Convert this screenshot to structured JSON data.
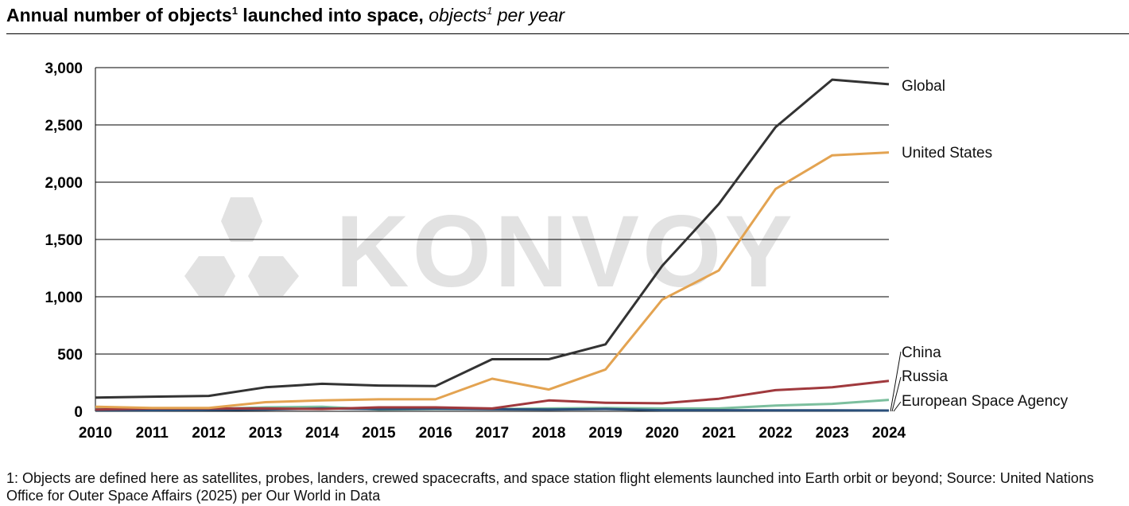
{
  "title": {
    "main": "Annual number of objects",
    "main_sup": "1",
    "main_tail": " launched into space, ",
    "unit": "objects",
    "unit_sup": "1",
    "unit_tail": " per year"
  },
  "watermark": "KONVOY",
  "footnote": "1: Objects are defined here as satellites, probes, landers, crewed spacecrafts, and space station flight elements launched into Earth orbit or beyond; Source: United Nations Office for Outer Space Affairs (2025) per Our World in Data",
  "chart_data": {
    "type": "line",
    "x": [
      2010,
      2011,
      2012,
      2013,
      2014,
      2015,
      2016,
      2017,
      2018,
      2019,
      2020,
      2021,
      2022,
      2023,
      2024
    ],
    "x_tick_labels": [
      "2010",
      "2011",
      "2012",
      "2013",
      "2014",
      "2015",
      "2016",
      "2017",
      "2018",
      "2019",
      "2020",
      "2021",
      "2022",
      "2023",
      "2024"
    ],
    "ylim": [
      0,
      3000
    ],
    "y_ticks": [
      0,
      500,
      1000,
      1500,
      2000,
      2500,
      3000
    ],
    "y_tick_labels": [
      "0",
      "500",
      "1,000",
      "1,500",
      "2,000",
      "2,500",
      "3,000"
    ],
    "grid": "horizontal",
    "legend": "direct labels at right end of lines",
    "series": [
      {
        "name": "Global",
        "color": "#333333",
        "values": [
          120,
          128,
          135,
          210,
          240,
          225,
          220,
          455,
          455,
          585,
          1270,
          1810,
          2480,
          2895,
          2855
        ]
      },
      {
        "name": "United States",
        "color": "#e3a351",
        "values": [
          40,
          30,
          30,
          80,
          95,
          105,
          105,
          285,
          190,
          365,
          975,
          1230,
          1940,
          2235,
          2260
        ]
      },
      {
        "name": "China",
        "color": "#2a4f7a",
        "values": [
          10,
          10,
          12,
          15,
          25,
          20,
          22,
          18,
          15,
          20,
          10,
          10,
          8,
          8,
          7
        ]
      },
      {
        "name": "Russia",
        "color": "#a0393d",
        "values": [
          15,
          25,
          25,
          25,
          20,
          35,
          35,
          25,
          95,
          75,
          70,
          110,
          185,
          210,
          265
        ]
      },
      {
        "name": "European Space Agency",
        "color": "#7cbf9e",
        "values": [
          30,
          25,
          20,
          35,
          40,
          15,
          20,
          20,
          25,
          30,
          25,
          25,
          50,
          65,
          100
        ]
      }
    ]
  }
}
